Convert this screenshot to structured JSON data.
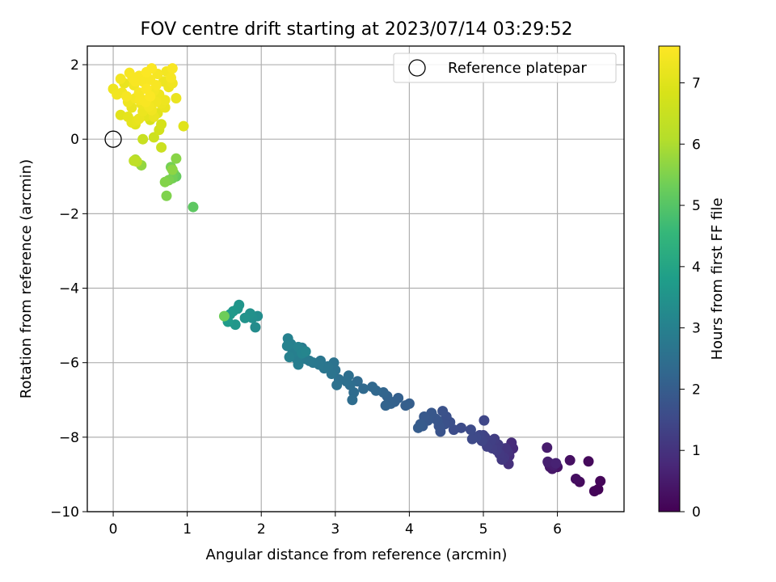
{
  "chart_data": {
    "type": "scatter",
    "title": "FOV centre drift starting at 2023/07/14 03:29:52",
    "xlabel": "Angular distance from reference (arcmin)",
    "ylabel": "Rotation from reference (arcmin)",
    "xlim": [
      -0.35,
      6.9
    ],
    "ylim": [
      -10.0,
      2.5
    ],
    "xticks": [
      0,
      1,
      2,
      3,
      4,
      5,
      6
    ],
    "yticks": [
      -10,
      -8,
      -6,
      -4,
      -2,
      0,
      2
    ],
    "xtick_labels": [
      "0",
      "1",
      "2",
      "3",
      "4",
      "5",
      "6"
    ],
    "ytick_labels": [
      "−10",
      "−8",
      "−6",
      "−4",
      "−2",
      "0",
      "2"
    ],
    "grid": true,
    "colormap": "viridis",
    "colorbar": {
      "label": "Hours from first FF file",
      "range": [
        0,
        7.6
      ],
      "ticks": [
        0,
        1,
        2,
        3,
        4,
        5,
        6,
        7
      ],
      "tick_labels": [
        "0",
        "1",
        "2",
        "3",
        "4",
        "5",
        "6",
        "7"
      ]
    },
    "legend": {
      "location": "top-right",
      "entries": [
        "Reference platepar"
      ]
    },
    "reference_point": {
      "x": 0,
      "y": 0,
      "label": "Reference platepar"
    },
    "points": [
      [
        6.55,
        -9.4,
        0.05
      ],
      [
        6.5,
        -9.45,
        0.08
      ],
      [
        6.58,
        -9.18,
        0.1
      ],
      [
        6.42,
        -8.65,
        0.15
      ],
      [
        6.3,
        -9.2,
        0.2
      ],
      [
        6.25,
        -9.12,
        0.25
      ],
      [
        6.17,
        -8.62,
        0.3
      ],
      [
        6.0,
        -8.8,
        0.35
      ],
      [
        5.95,
        -8.72,
        0.38
      ],
      [
        5.93,
        -8.85,
        0.42
      ],
      [
        5.9,
        -8.8,
        0.45
      ],
      [
        5.88,
        -8.7,
        0.48
      ],
      [
        5.86,
        -8.28,
        0.52
      ],
      [
        5.95,
        -8.75,
        0.55
      ],
      [
        5.87,
        -8.66,
        0.6
      ],
      [
        5.98,
        -8.7,
        0.65
      ],
      [
        5.4,
        -8.3,
        0.8
      ],
      [
        5.38,
        -8.15,
        0.85
      ],
      [
        5.35,
        -8.5,
        0.9
      ],
      [
        5.34,
        -8.72,
        0.95
      ],
      [
        5.33,
        -8.4,
        1.0
      ],
      [
        5.3,
        -8.3,
        1.05
      ],
      [
        5.28,
        -8.55,
        1.1
      ],
      [
        5.25,
        -8.6,
        1.12
      ],
      [
        5.22,
        -8.45,
        1.15
      ],
      [
        5.2,
        -8.2,
        1.18
      ],
      [
        5.18,
        -8.35,
        1.2
      ],
      [
        5.15,
        -8.05,
        1.22
      ],
      [
        5.12,
        -8.3,
        1.25
      ],
      [
        5.1,
        -8.1,
        1.28
      ],
      [
        5.05,
        -8.25,
        1.3
      ],
      [
        5.02,
        -8.0,
        1.33
      ],
      [
        5.0,
        -7.95,
        1.36
      ],
      [
        4.98,
        -8.1,
        1.4
      ],
      [
        4.95,
        -7.95,
        1.43
      ],
      [
        5.01,
        -7.55,
        1.46
      ],
      [
        4.9,
        -8.0,
        1.5
      ],
      [
        4.85,
        -8.05,
        1.52
      ],
      [
        4.83,
        -7.8,
        1.55
      ],
      [
        4.7,
        -7.75,
        1.58
      ],
      [
        4.6,
        -7.8,
        1.6
      ],
      [
        4.55,
        -7.6,
        1.65
      ],
      [
        4.5,
        -7.45,
        1.68
      ],
      [
        4.48,
        -7.65,
        1.7
      ],
      [
        4.45,
        -7.3,
        1.72
      ],
      [
        4.42,
        -7.85,
        1.75
      ],
      [
        4.4,
        -7.7,
        1.78
      ],
      [
        4.38,
        -7.55,
        1.8
      ],
      [
        4.35,
        -7.5,
        1.82
      ],
      [
        4.3,
        -7.35,
        1.85
      ],
      [
        4.25,
        -7.55,
        1.88
      ],
      [
        4.2,
        -7.45,
        1.9
      ],
      [
        4.18,
        -7.7,
        1.92
      ],
      [
        4.15,
        -7.65,
        1.95
      ],
      [
        4.12,
        -7.75,
        1.98
      ],
      [
        4.0,
        -7.1,
        2.02
      ],
      [
        3.95,
        -7.15,
        2.05
      ],
      [
        3.85,
        -6.95,
        2.08
      ],
      [
        3.8,
        -7.05,
        2.1
      ],
      [
        3.75,
        -7.1,
        2.12
      ],
      [
        3.7,
        -6.9,
        2.15
      ],
      [
        3.68,
        -7.15,
        2.18
      ],
      [
        3.65,
        -6.8,
        2.2
      ],
      [
        3.55,
        -6.75,
        2.28
      ],
      [
        3.5,
        -6.65,
        2.3
      ],
      [
        3.38,
        -6.7,
        2.35
      ],
      [
        3.3,
        -6.5,
        2.38
      ],
      [
        3.25,
        -6.8,
        2.4
      ],
      [
        3.23,
        -7.0,
        2.42
      ],
      [
        3.2,
        -6.6,
        2.45
      ],
      [
        3.18,
        -6.35,
        2.48
      ],
      [
        3.15,
        -6.5,
        2.5
      ],
      [
        3.05,
        -6.45,
        2.52
      ],
      [
        3.02,
        -6.6,
        2.55
      ],
      [
        3.0,
        -6.2,
        2.58
      ],
      [
        2.98,
        -6.0,
        2.6
      ],
      [
        2.95,
        -6.3,
        2.62
      ],
      [
        2.9,
        -6.1,
        2.65
      ],
      [
        2.85,
        -6.15,
        2.68
      ],
      [
        2.8,
        -5.95,
        2.7
      ],
      [
        2.78,
        -6.05,
        2.72
      ],
      [
        2.7,
        -6.0,
        2.75
      ],
      [
        2.65,
        -5.95,
        2.78
      ],
      [
        2.6,
        -5.9,
        2.8
      ],
      [
        2.55,
        -5.6,
        2.82
      ],
      [
        2.52,
        -5.8,
        2.85
      ],
      [
        2.5,
        -6.05,
        2.88
      ],
      [
        2.48,
        -5.9,
        2.9
      ],
      [
        2.45,
        -5.65,
        2.92
      ],
      [
        2.42,
        -5.75,
        2.95
      ],
      [
        2.4,
        -5.5,
        2.98
      ],
      [
        2.38,
        -5.85,
        3.0
      ],
      [
        2.36,
        -5.35,
        3.02
      ],
      [
        2.35,
        -5.55,
        3.05
      ],
      [
        2.5,
        -5.58,
        3.08
      ],
      [
        2.55,
        -5.75,
        3.1
      ],
      [
        2.6,
        -5.7,
        3.12
      ],
      [
        1.92,
        -5.05,
        3.3
      ],
      [
        1.95,
        -4.75,
        3.35
      ],
      [
        1.88,
        -4.8,
        3.4
      ],
      [
        1.85,
        -4.68,
        3.45
      ],
      [
        1.78,
        -4.8,
        3.5
      ],
      [
        1.7,
        -4.45,
        3.55
      ],
      [
        1.68,
        -4.55,
        3.58
      ],
      [
        1.65,
        -4.98,
        3.62
      ],
      [
        1.62,
        -4.62,
        3.65
      ],
      [
        1.58,
        -4.7,
        3.68
      ],
      [
        1.55,
        -4.9,
        3.72
      ],
      [
        1.5,
        -4.75,
        5.3
      ],
      [
        1.08,
        -1.82,
        5.1
      ],
      [
        0.85,
        -1.0,
        5.2
      ],
      [
        0.82,
        -0.92,
        5.3
      ],
      [
        0.8,
        -1.05,
        5.35
      ],
      [
        0.78,
        -0.75,
        5.4
      ],
      [
        0.75,
        -1.1,
        5.45
      ],
      [
        0.72,
        -1.52,
        5.5
      ],
      [
        0.7,
        -1.15,
        5.55
      ],
      [
        0.85,
        -0.52,
        5.6
      ],
      [
        0.8,
        -0.82,
        5.65
      ],
      [
        0.38,
        -0.7,
        5.7
      ],
      [
        0.3,
        -0.55,
        6.0
      ],
      [
        0.28,
        -0.58,
        6.3
      ],
      [
        0.32,
        -0.6,
        6.2
      ],
      [
        0.4,
        0.0,
        6.5
      ],
      [
        0.55,
        0.05,
        6.6
      ],
      [
        0.65,
        -0.22,
        6.55
      ],
      [
        0.62,
        0.25,
        6.7
      ],
      [
        0.65,
        0.4,
        6.8
      ],
      [
        0.95,
        0.35,
        7.0
      ],
      [
        0.5,
        0.52,
        6.85
      ],
      [
        0.3,
        0.4,
        7.0
      ],
      [
        0.1,
        0.65,
        7.05
      ],
      [
        0.45,
        0.62,
        7.1
      ],
      [
        0.6,
        0.7,
        7.05
      ],
      [
        0.0,
        1.35,
        7.3
      ],
      [
        0.05,
        1.2,
        7.35
      ],
      [
        0.1,
        1.62,
        7.4
      ],
      [
        0.15,
        1.5,
        7.2
      ],
      [
        0.2,
        1.0,
        7.3
      ],
      [
        0.22,
        1.78,
        7.45
      ],
      [
        0.25,
        0.85,
        7.2
      ],
      [
        0.28,
        1.45,
        7.35
      ],
      [
        0.3,
        1.1,
        7.4
      ],
      [
        0.32,
        0.5,
        7.15
      ],
      [
        0.35,
        1.7,
        7.5
      ],
      [
        0.35,
        1.25,
        7.45
      ],
      [
        0.38,
        0.95,
        7.3
      ],
      [
        0.4,
        1.55,
        7.5
      ],
      [
        0.4,
        0.75,
        7.25
      ],
      [
        0.42,
        1.05,
        7.5
      ],
      [
        0.45,
        1.35,
        7.55
      ],
      [
        0.45,
        1.8,
        7.55
      ],
      [
        0.48,
        0.88,
        7.4
      ],
      [
        0.5,
        1.15,
        7.55
      ],
      [
        0.5,
        1.6,
        7.5
      ],
      [
        0.52,
        1.9,
        7.55
      ],
      [
        0.55,
        1.3,
        7.4
      ],
      [
        0.55,
        0.6,
        7.2
      ],
      [
        0.58,
        1.0,
        7.35
      ],
      [
        0.6,
        1.75,
        7.45
      ],
      [
        0.62,
        1.2,
        7.3
      ],
      [
        0.65,
        0.95,
        7.25
      ],
      [
        0.68,
        1.55,
        7.3
      ],
      [
        0.7,
        0.85,
        7.2
      ],
      [
        0.72,
        1.82,
        7.4
      ],
      [
        0.75,
        1.4,
        7.3
      ],
      [
        0.78,
        1.65,
        7.45
      ],
      [
        0.8,
        1.9,
        7.5
      ],
      [
        0.8,
        1.5,
        7.35
      ],
      [
        0.85,
        1.1,
        7.2
      ],
      [
        0.7,
        1.05,
        7.3
      ],
      [
        0.3,
        1.55,
        7.5
      ],
      [
        0.12,
        1.25,
        7.35
      ],
      [
        0.18,
        1.15,
        7.45
      ],
      [
        0.26,
        1.65,
        7.5
      ],
      [
        0.36,
        1.05,
        7.45
      ],
      [
        0.44,
        1.0,
        7.5
      ],
      [
        0.52,
        0.78,
        7.35
      ],
      [
        0.58,
        1.45,
        7.5
      ],
      [
        0.2,
        0.6,
        7.1
      ],
      [
        0.35,
        0.55,
        7.2
      ],
      [
        0.25,
        0.45,
        7.1
      ]
    ]
  }
}
